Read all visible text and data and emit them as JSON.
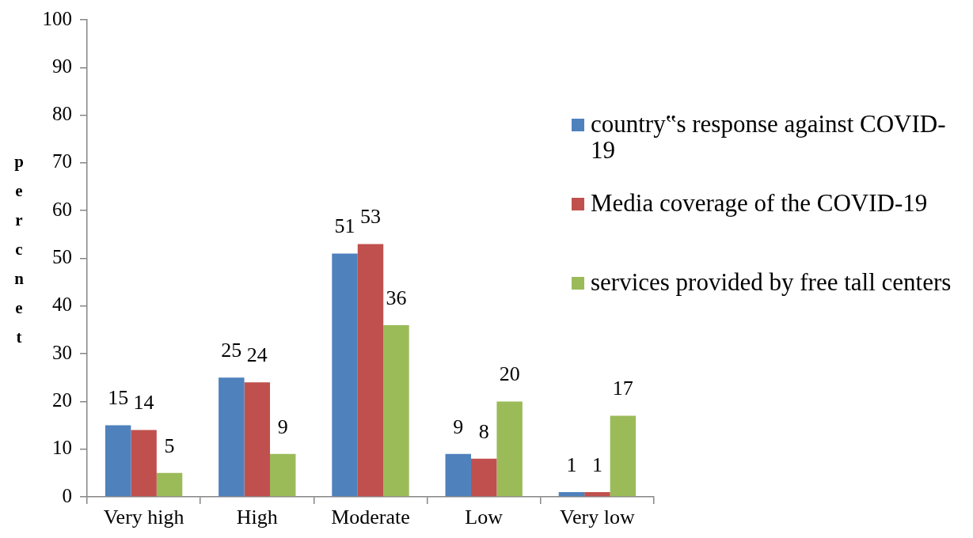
{
  "chart_data": {
    "type": "bar",
    "categories": [
      "Very high",
      "High",
      "Moderate",
      "Low",
      "Very low"
    ],
    "series": [
      {
        "name": "country‟s response against COVID-19",
        "color": "#4f81bd",
        "values": [
          15,
          25,
          51,
          9,
          1
        ]
      },
      {
        "name": "Media coverage of the COVID-19",
        "color": "#c0504d",
        "values": [
          14,
          24,
          53,
          8,
          1
        ]
      },
      {
        "name": "services provided by free tall centers",
        "color": "#9bbb59",
        "values": [
          5,
          9,
          36,
          20,
          17
        ]
      }
    ],
    "ylabel": "percnet",
    "ylim": [
      0,
      100
    ],
    "yticks": [
      0,
      10,
      20,
      30,
      40,
      50,
      60,
      70,
      80,
      90,
      100
    ],
    "data_labels": true,
    "legend": "right"
  }
}
